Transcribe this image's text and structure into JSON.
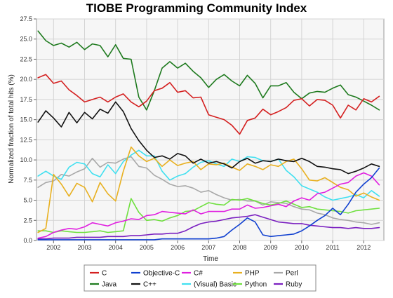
{
  "chart_data": {
    "type": "line",
    "title": "TIOBE Programming Community Index",
    "xlabel": "Time",
    "ylabel": "Normalized fraction of total hits (%)",
    "xlim": [
      2001.45,
      2012.65
    ],
    "ylim": [
      0,
      27.5
    ],
    "yticks": [
      "0.0",
      "2.5",
      "5.0",
      "7.5",
      "10.0",
      "12.5",
      "15.0",
      "17.5",
      "20.0",
      "22.5",
      "25.0",
      "27.5"
    ],
    "xticks": [
      "2002",
      "2003",
      "2004",
      "2005",
      "2006",
      "2007",
      "2008",
      "2009",
      "2010",
      "2011",
      "2012"
    ],
    "grid": true,
    "legend_position": "bottom",
    "x": [
      2001.5,
      2001.75,
      2002.0,
      2002.25,
      2002.5,
      2002.75,
      2003.0,
      2003.25,
      2003.5,
      2003.75,
      2004.0,
      2004.25,
      2004.5,
      2004.75,
      2005.0,
      2005.25,
      2005.5,
      2005.75,
      2006.0,
      2006.25,
      2006.5,
      2006.75,
      2007.0,
      2007.25,
      2007.5,
      2007.75,
      2008.0,
      2008.25,
      2008.5,
      2008.75,
      2009.0,
      2009.25,
      2009.5,
      2009.75,
      2010.0,
      2010.25,
      2010.5,
      2010.75,
      2011.0,
      2011.25,
      2011.5,
      2011.75,
      2012.0,
      2012.25,
      2012.5
    ],
    "series": [
      {
        "name": "C",
        "color": "#d42020",
        "values": [
          20.2,
          20.6,
          19.5,
          19.8,
          18.7,
          18.0,
          17.2,
          17.5,
          17.8,
          17.2,
          17.8,
          18.2,
          17.2,
          16.6,
          17.3,
          18.6,
          18.9,
          19.6,
          18.4,
          18.6,
          17.7,
          17.8,
          15.6,
          15.3,
          15.0,
          14.3,
          13.2,
          14.9,
          15.2,
          16.3,
          15.6,
          16.0,
          16.5,
          17.4,
          17.6,
          16.7,
          17.5,
          17.4,
          16.8,
          15.2,
          16.8,
          16.2,
          17.6,
          17.2,
          17.9
        ]
      },
      {
        "name": "Java",
        "color": "#1e7a1e",
        "values": [
          26.0,
          24.8,
          24.2,
          24.5,
          24.0,
          24.6,
          23.7,
          24.4,
          24.2,
          22.8,
          24.3,
          22.6,
          22.5,
          17.8,
          16.2,
          18.6,
          21.4,
          22.2,
          21.4,
          22.0,
          21.0,
          20.2,
          19.0,
          20.0,
          20.6,
          19.8,
          19.2,
          20.5,
          19.5,
          17.7,
          19.2,
          19.2,
          19.6,
          18.4,
          17.6,
          18.3,
          18.5,
          18.4,
          18.9,
          19.3,
          18.1,
          17.8,
          17.3,
          16.8,
          16.2
        ]
      },
      {
        "name": "Objective-C",
        "color": "#1040d0",
        "values": [
          0.1,
          0.1,
          0.1,
          0.1,
          0.1,
          0.1,
          0.1,
          0.1,
          0.1,
          0.1,
          0.1,
          0.1,
          0.1,
          0.1,
          0.1,
          0.1,
          0.2,
          0.2,
          0.2,
          0.2,
          0.2,
          0.2,
          0.2,
          0.3,
          0.5,
          1.3,
          2.0,
          2.8,
          2.3,
          0.7,
          0.5,
          0.6,
          0.7,
          0.8,
          1.2,
          1.8,
          2.5,
          3.1,
          4.0,
          3.2,
          4.5,
          6.0,
          7.0,
          7.8,
          9.0
        ]
      },
      {
        "name": "C++",
        "color": "#111111",
        "values": [
          14.7,
          16.1,
          15.2,
          14.1,
          15.9,
          14.6,
          15.9,
          15.1,
          16.3,
          15.8,
          17.2,
          16.0,
          13.9,
          12.4,
          11.2,
          10.3,
          10.5,
          10.1,
          10.8,
          10.5,
          9.6,
          10.1,
          9.6,
          9.8,
          9.5,
          9.0,
          9.8,
          10.2,
          9.6,
          9.9,
          9.8,
          10.1,
          9.9,
          9.8,
          10.2,
          9.8,
          9.2,
          9.1,
          8.9,
          8.8,
          8.3,
          8.6,
          9.0,
          9.5,
          9.2
        ]
      },
      {
        "name": "C#",
        "color": "#e020e0",
        "values": [
          0.3,
          0.5,
          1.0,
          1.3,
          1.5,
          1.4,
          1.7,
          2.2,
          2.0,
          1.8,
          2.2,
          2.4,
          2.7,
          2.6,
          3.1,
          3.2,
          3.6,
          3.5,
          3.4,
          3.3,
          3.8,
          3.3,
          3.6,
          3.6,
          3.6,
          3.9,
          3.9,
          4.4,
          4.0,
          4.1,
          4.3,
          4.5,
          4.2,
          4.9,
          5.3,
          5.0,
          5.8,
          6.0,
          6.5,
          7.0,
          7.2,
          8.0,
          8.4,
          8.0,
          6.9
        ]
      },
      {
        "name": "(Visual) Basic",
        "color": "#40e0f0",
        "values": [
          8.0,
          8.6,
          8.0,
          7.6,
          9.1,
          9.7,
          9.5,
          8.3,
          7.9,
          9.4,
          8.3,
          9.8,
          10.6,
          11.2,
          10.5,
          10.5,
          8.6,
          7.5,
          8.0,
          8.3,
          9.1,
          9.7,
          9.9,
          9.5,
          9.2,
          10.1,
          9.8,
          10.4,
          10.3,
          9.9,
          9.8,
          10.1,
          8.7,
          7.9,
          6.8,
          6.4,
          6.0,
          5.4,
          5.0,
          5.2,
          5.4,
          5.7,
          5.3,
          6.2,
          5.5
        ]
      },
      {
        "name": "PHP",
        "color": "#e8b020",
        "values": [
          1.0,
          1.5,
          8.2,
          7.0,
          5.5,
          7.1,
          6.6,
          4.8,
          7.2,
          5.8,
          4.9,
          8.6,
          11.6,
          10.5,
          9.8,
          10.2,
          9.2,
          10.0,
          9.3,
          9.6,
          9.8,
          8.8,
          9.5,
          9.4,
          9.6,
          9.1,
          8.7,
          9.5,
          9.2,
          8.8,
          9.4,
          9.2,
          9.8,
          10.1,
          8.9,
          7.5,
          7.4,
          7.8,
          7.2,
          6.6,
          6.3,
          5.5,
          5.9,
          5.4,
          5.0
        ]
      },
      {
        "name": "Python",
        "color": "#70e040",
        "values": [
          1.2,
          1.2,
          1.0,
          1.2,
          1.1,
          1.0,
          1.0,
          1.1,
          1.2,
          1.0,
          1.1,
          1.2,
          5.2,
          3.5,
          2.5,
          2.6,
          2.4,
          2.8,
          3.1,
          3.6,
          3.7,
          4.2,
          4.7,
          4.5,
          4.4,
          5.1,
          5.0,
          5.2,
          4.9,
          4.6,
          4.4,
          4.6,
          4.9,
          4.5,
          4.1,
          4.2,
          3.9,
          3.8,
          3.7,
          3.6,
          3.4,
          3.7,
          3.8,
          3.9,
          4.0
        ]
      },
      {
        "name": "Perl",
        "color": "#a8a8a8",
        "values": [
          6.6,
          7.2,
          7.4,
          8.2,
          8.0,
          8.5,
          8.9,
          10.2,
          9.1,
          9.7,
          9.6,
          10.1,
          10.4,
          9.2,
          9.0,
          8.1,
          7.6,
          7.0,
          6.7,
          6.8,
          6.5,
          6.0,
          6.2,
          5.7,
          5.3,
          5.0,
          5.1,
          4.9,
          4.9,
          4.4,
          4.8,
          4.7,
          4.6,
          4.2,
          3.9,
          3.8,
          3.4,
          3.2,
          2.8,
          2.6,
          2.5,
          2.3,
          2.2,
          2.0,
          2.2
        ]
      },
      {
        "name": "Ruby",
        "color": "#7a1fc0",
        "values": [
          0.2,
          0.2,
          0.3,
          0.3,
          0.3,
          0.4,
          0.4,
          0.4,
          0.4,
          0.5,
          0.5,
          0.5,
          0.6,
          0.6,
          0.7,
          0.8,
          0.8,
          0.9,
          0.9,
          1.2,
          1.7,
          2.1,
          2.3,
          2.4,
          2.6,
          2.8,
          2.9,
          3.0,
          3.2,
          2.9,
          2.6,
          2.3,
          2.2,
          2.1,
          2.1,
          1.9,
          1.8,
          1.7,
          1.6,
          1.6,
          1.5,
          1.6,
          1.5,
          1.5,
          1.6
        ]
      }
    ],
    "legend_rows": [
      [
        "C",
        "Objective-C",
        "C#",
        "PHP",
        "Perl"
      ],
      [
        "Java",
        "C++",
        "(Visual) Basic",
        "Python",
        "Ruby"
      ]
    ]
  }
}
